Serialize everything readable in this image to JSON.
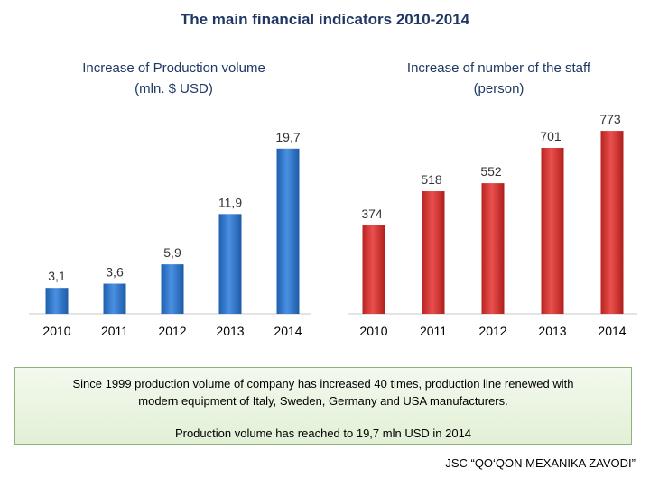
{
  "slide": {
    "title": "The main financial indicators 2010-2014"
  },
  "charts": {
    "left": {
      "title_line1": "Increase of Production volume",
      "title_line2": "(mln. $ USD)"
    },
    "right": {
      "title_line1": "Increase of number of the staff",
      "title_line2": "(person)"
    }
  },
  "chart_data": [
    {
      "type": "bar",
      "title": "Increase of Production volume",
      "subtitle": "(mln. $ USD)",
      "categories": [
        "2010",
        "2011",
        "2012",
        "2013",
        "2014"
      ],
      "values": [
        3.1,
        3.6,
        5.9,
        11.9,
        19.7
      ],
      "data_labels": [
        "3,1",
        "3,6",
        "5,9",
        "11,9",
        "19,7"
      ],
      "ylim": [
        0,
        20
      ],
      "grid": false,
      "color": "#2e75c9"
    },
    {
      "type": "bar",
      "title": "Increase of number of the staff",
      "subtitle": "(person)",
      "categories": [
        "2010",
        "2011",
        "2012",
        "2013",
        "2014"
      ],
      "values": [
        374,
        518,
        552,
        701,
        773
      ],
      "data_labels": [
        "374",
        "518",
        "552",
        "701",
        "773"
      ],
      "ylim": [
        0,
        800
      ],
      "grid": false,
      "color": "#d93a38"
    }
  ],
  "note": {
    "line1": "Since 1999 production volume of company has increased 40 times, production line renewed with",
    "line1b": "modern equipment of Italy, Sweden, Germany and USA manufacturers.",
    "line2": "Production volume has reached to 19,7 mln USD in 2014"
  },
  "footer": {
    "company": "JSC “QO‘QON MEXANIKA ZAVODI”"
  }
}
